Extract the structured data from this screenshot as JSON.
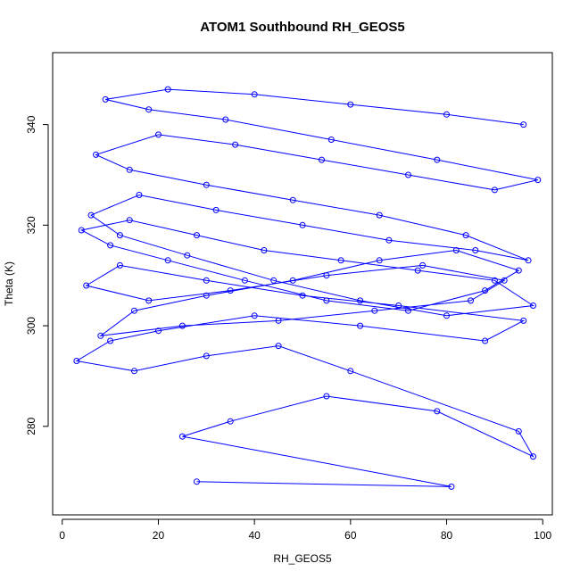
{
  "chart_data": {
    "type": "line",
    "title": "ATOM1 Southbound RH_GEOS5",
    "xlabel": "RH_GEOS5",
    "ylabel": "Theta (K)",
    "xlim": [
      -2,
      102
    ],
    "ylim": [
      262.4,
      354.3
    ],
    "x_ticks": [
      0,
      20,
      40,
      60,
      80,
      100
    ],
    "y_ticks": [
      280,
      300,
      320,
      340
    ],
    "grid": false,
    "legend": "none",
    "marker": "open-circle",
    "color": "#0000ff",
    "series": [
      {
        "x": [
          28,
          81,
          25,
          35,
          55,
          78,
          98,
          95,
          60,
          45,
          30,
          15,
          3,
          10,
          20,
          40,
          62,
          88,
          96,
          70,
          50,
          30,
          12,
          5,
          18,
          35,
          55,
          75,
          92,
          85,
          65,
          45,
          25,
          8,
          15,
          30,
          48,
          66,
          82,
          95,
          88,
          72,
          55,
          38,
          22,
          10,
          4,
          14,
          28,
          42,
          58,
          74,
          90,
          98,
          80,
          62,
          44,
          26,
          12,
          6,
          16,
          32,
          50,
          68,
          86,
          97,
          84,
          66,
          48,
          30,
          14,
          7,
          20,
          36,
          54,
          72,
          90,
          99,
          78,
          56,
          34,
          18,
          9,
          22,
          40,
          60,
          80,
          96
        ],
        "y": [
          269,
          268,
          278,
          281,
          286,
          283,
          274,
          279,
          291,
          296,
          294,
          291,
          293,
          297,
          299,
          302,
          300,
          297,
          301,
          304,
          306,
          309,
          312,
          308,
          305,
          307,
          310,
          312,
          309,
          305,
          303,
          301,
          300,
          298,
          303,
          306,
          309,
          313,
          315,
          311,
          307,
          303,
          305,
          309,
          313,
          316,
          319,
          321,
          318,
          315,
          313,
          311,
          309,
          304,
          302,
          305,
          309,
          314,
          318,
          322,
          326,
          323,
          320,
          317,
          315,
          313,
          318,
          322,
          325,
          328,
          331,
          334,
          338,
          336,
          333,
          330,
          327,
          329,
          333,
          337,
          341,
          343,
          345,
          347,
          346,
          344,
          342,
          340
        ]
      }
    ]
  }
}
